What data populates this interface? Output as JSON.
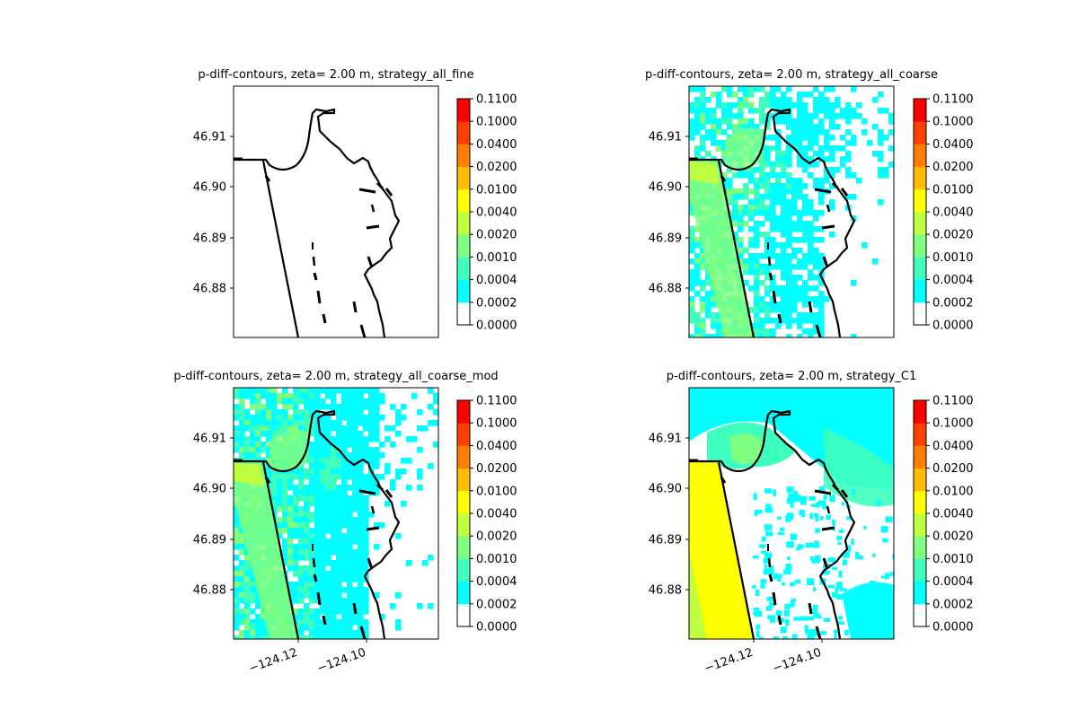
{
  "chart_data": [
    {
      "type": "heatmap",
      "title": "p-diff-contours, zeta= 2.00 m, strategy_all_fine",
      "yticks": [
        "46.91",
        "46.90",
        "46.89",
        "46.88"
      ],
      "xticks": [],
      "fill": "none"
    },
    {
      "type": "heatmap",
      "title": "p-diff-contours, zeta= 2.00 m, strategy_all_coarse",
      "yticks": [
        "46.91",
        "46.90",
        "46.89",
        "46.88"
      ],
      "xticks": [],
      "fill": "patchy"
    },
    {
      "type": "heatmap",
      "title": "p-diff-contours, zeta= 2.00 m, strategy_all_coarse_mod",
      "yticks": [
        "46.91",
        "46.90",
        "46.89",
        "46.88"
      ],
      "xticks": [
        "−124.12",
        "−124.10"
      ],
      "fill": "dense"
    },
    {
      "type": "heatmap",
      "title": "p-diff-contours, zeta= 2.00 m, strategy_C1",
      "yticks": [
        "46.91",
        "46.90",
        "46.89",
        "46.88"
      ],
      "xticks": [
        "−124.12",
        "−124.10"
      ],
      "fill": "smooth"
    }
  ],
  "colorbar": {
    "labels": [
      "0.0000",
      "0.0002",
      "0.0004",
      "0.0010",
      "0.0020",
      "0.0040",
      "0.0100",
      "0.0200",
      "0.0400",
      "0.1000",
      "0.1100"
    ],
    "colors": [
      "#ffffff",
      "#00ffff",
      "#3fffbf",
      "#7fff7f",
      "#bfff3f",
      "#ffff00",
      "#ffbf00",
      "#ff7f00",
      "#ff3f00",
      "#ff0000"
    ]
  }
}
